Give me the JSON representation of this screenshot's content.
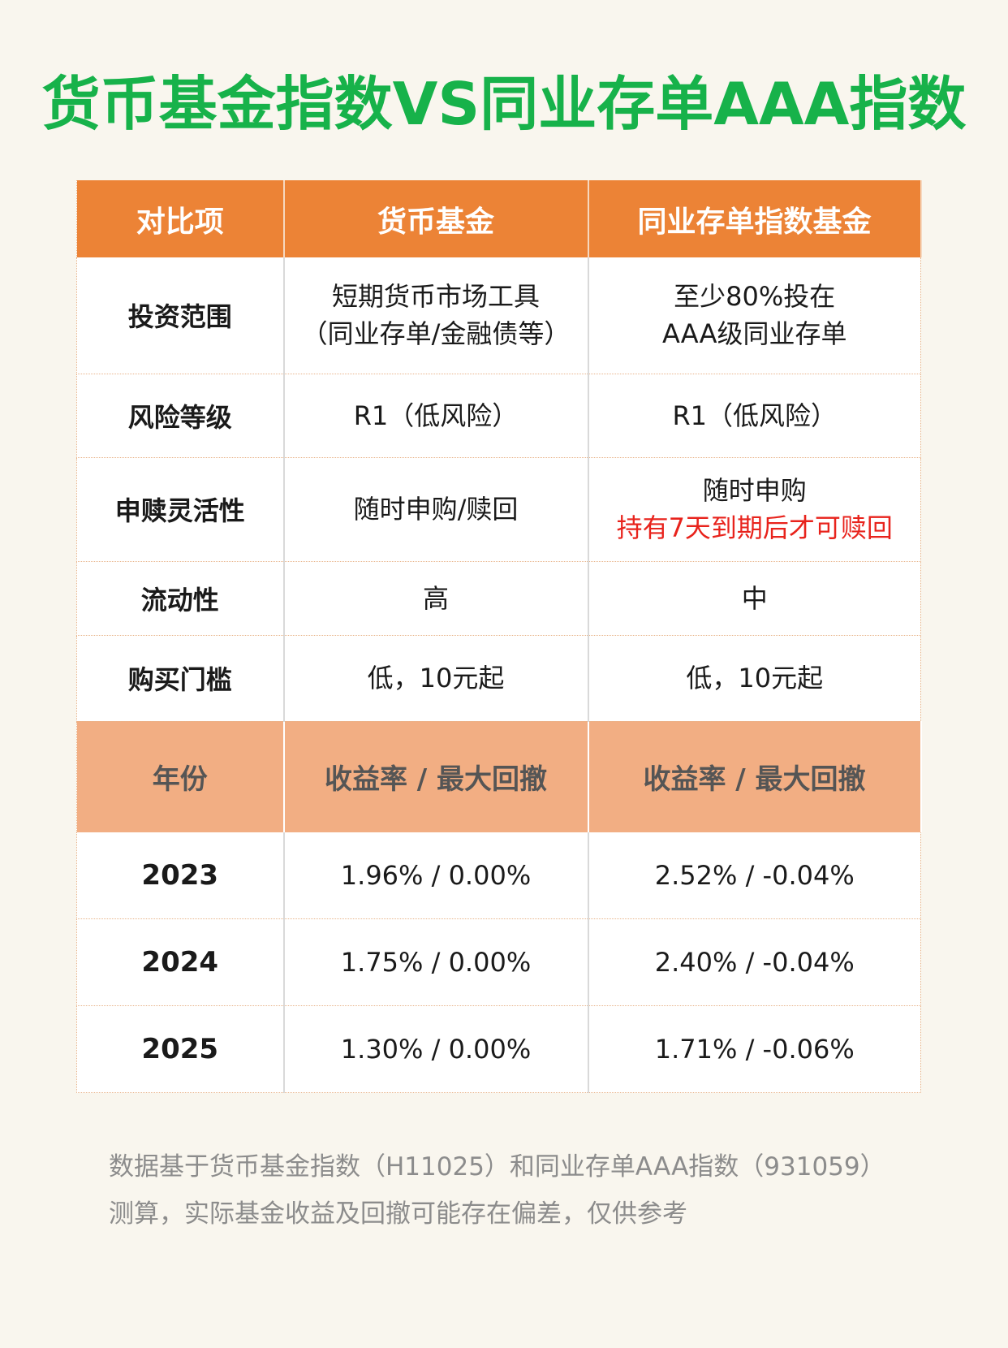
{
  "title": "货币基金指数VS同业存单AAA指数",
  "header": {
    "col1": "对比项",
    "col2": "货币基金",
    "col3": "同业存单指数基金"
  },
  "rows": [
    {
      "label": "投资范围",
      "a_line1": "短期货币市场工具",
      "a_line2": "（同业存单/金融债等）",
      "b_line1": "至少80%投在",
      "b_line2": "AAA级同业存单"
    },
    {
      "label": "风险等级",
      "a": "R1（低风险）",
      "b": "R1（低风险）"
    },
    {
      "label": "申赎灵活性",
      "a": "随时申购/赎回",
      "b_line1": "随时申购",
      "b_line2": "持有7天到期后才可赎回"
    },
    {
      "label": "流动性",
      "a": "高",
      "b": "中"
    },
    {
      "label": "购买门槛",
      "a": "低，10元起",
      "b": "低，10元起"
    }
  ],
  "subheader": {
    "col1": "年份",
    "col2": "收益率 / 最大回撤",
    "col3": "收益率 / 最大回撤"
  },
  "years": [
    {
      "year": "2023",
      "a": "1.96% / 0.00%",
      "b": "2.52% / -0.04%"
    },
    {
      "year": "2024",
      "a": "1.75% / 0.00%",
      "b": "2.40% / -0.04%"
    },
    {
      "year": "2025",
      "a": "1.30% / 0.00%",
      "b": "1.71% / -0.06%"
    }
  ],
  "note": {
    "line1": "数据基于货币基金指数（H11025）和同业存单AAA指数（931059）",
    "line2": "测算，实际基金收益及回撤可能存在偏差，仅供参考"
  },
  "colors": {
    "title": "#17b24a",
    "header_bg": "#ec8336",
    "subheader_bg": "#f2ae83",
    "highlight": "#e8231c",
    "background": "#f9f6ee"
  }
}
